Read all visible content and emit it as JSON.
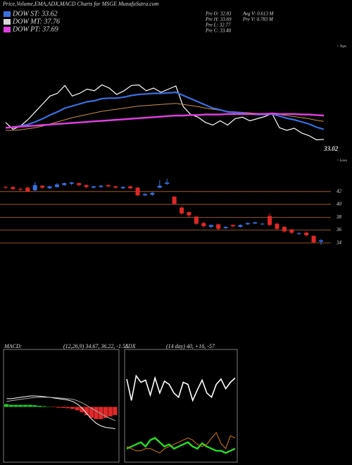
{
  "header": {
    "title": "Price,Volume,EMA,ADX,MACD Charts for MSGE MunafaSutra.com",
    "legend": [
      {
        "label": "DOW ST: 33.62",
        "color": "#3a6fe0"
      },
      {
        "label": "DOW MT: 37.76",
        "color": "#d8d8d8"
      },
      {
        "label": "DOW PT: 37.69",
        "color": "#e040e0"
      }
    ],
    "stats": [
      "Pre  O: 32.83",
      "Pre  H: 33.69",
      "Pre  L: 32.77",
      "Pre  C: 33.40",
      "Avg V: 0.613 M",
      "Pre  V: 0.783 M"
    ]
  },
  "chart_data": [
    {
      "type": "line",
      "ylim": [
        31,
        47
      ],
      "annotations": [
        "33.02",
        "< Tops",
        "< Lows"
      ],
      "series": [
        {
          "color": "#ffffff",
          "width": 1.2,
          "values": [
            36.5,
            35.2,
            35.8,
            37,
            38.5,
            40,
            41.5,
            42,
            43.5,
            41.5,
            42,
            42.8,
            42.5,
            43.6,
            43,
            41.8,
            42.5,
            43.5,
            43.6,
            42.5,
            43,
            42.2,
            42.8,
            43.4,
            39.5,
            38,
            37.5,
            36.5,
            36,
            36.8,
            36,
            37.2,
            37.5,
            36.8,
            37.2,
            37.6,
            38.2,
            35.5,
            35,
            35.4,
            34.5,
            34,
            33.2,
            33.3
          ]
        },
        {
          "color": "#c89050",
          "width": 1,
          "values": [
            35,
            35,
            35.1,
            35.3,
            35.5,
            35.8,
            36.2,
            36.6,
            37,
            37.4,
            37.7,
            38,
            38.3,
            38.6,
            38.8,
            39,
            39.2,
            39.4,
            39.6,
            39.7,
            39.8,
            39.9,
            40,
            40.1,
            39.9,
            39.7,
            39.5,
            39.2,
            39,
            38.8,
            38.6,
            38.5,
            38.4,
            38.3,
            38.2,
            38.2,
            38.2,
            38,
            37.8,
            37.6,
            37.4,
            37.2,
            36.9,
            36.7
          ]
        },
        {
          "color": "#3a6fe0",
          "width": 2.2,
          "values": [
            35.5,
            35.6,
            35.8,
            36.1,
            36.6,
            37.2,
            37.9,
            38.5,
            39.2,
            39.6,
            40,
            40.4,
            40.6,
            41,
            41.1,
            41.1,
            41.3,
            41.6,
            41.8,
            41.9,
            42,
            42,
            42.1,
            42.2,
            41.6,
            41,
            40.4,
            39.8,
            39.2,
            38.9,
            38.5,
            38.4,
            38.3,
            38.1,
            38,
            38,
            38.1,
            37.7,
            37.3,
            37,
            36.6,
            36.2,
            35.6,
            35.2
          ]
        },
        {
          "color": "#e040e0",
          "width": 2.4,
          "values": [
            35.5,
            35.6,
            35.7,
            35.8,
            35.9,
            36,
            36.1,
            36.2,
            36.3,
            36.4,
            36.5,
            36.6,
            36.7,
            36.8,
            36.9,
            37,
            37.1,
            37.2,
            37.3,
            37.4,
            37.5,
            37.6,
            37.7,
            37.8,
            37.8,
            37.9,
            37.9,
            38,
            38,
            38,
            38.1,
            38.1,
            38.1,
            38.1,
            38.1,
            38.1,
            38.2,
            38.1,
            38.1,
            38.1,
            38,
            38,
            37.9,
            37.8
          ]
        }
      ]
    },
    {
      "type": "candlestick",
      "ylim": [
        33,
        44.5
      ],
      "yticks": [
        34,
        36,
        38,
        40,
        42
      ],
      "up_color": "#3a6fe0",
      "down_color": "#e02828",
      "grid_color": "#b86a28",
      "open": [
        42.7,
        42.7,
        42.4,
        42.6,
        42.2,
        42.9,
        42.5,
        42.7,
        43.0,
        43.2,
        43.3,
        43.0,
        42.6,
        42.7,
        43.0,
        42.8,
        42.5,
        42.8,
        42.6,
        41.4,
        41.5,
        42.6,
        43.2,
        41.2,
        39.5,
        38.8,
        38.1,
        37.1,
        36.5,
        36.9,
        36.3,
        36.8,
        36.5,
        36.9,
        37.0,
        36.9,
        38.2,
        37.0,
        36.5,
        36.1,
        35.5,
        35.6,
        35.1,
        34.2
      ],
      "high": [
        42.9,
        42.8,
        42.6,
        42.8,
        43.5,
        43.0,
        42.9,
        43.3,
        43.4,
        43.5,
        43.4,
        43.1,
        42.9,
        43.0,
        43.1,
        42.9,
        42.8,
        42.9,
        42.7,
        41.8,
        41.9,
        43.8,
        44.0,
        41.3,
        39.7,
        38.9,
        38.2,
        37.3,
        36.9,
        37.0,
        36.6,
        36.9,
        36.9,
        37.2,
        37.3,
        37.1,
        38.6,
        37.1,
        36.6,
        36.2,
        35.7,
        35.8,
        35.2,
        34.6
      ],
      "low": [
        42.4,
        42.2,
        42.0,
        41.9,
        42.0,
        42.4,
        42.4,
        42.6,
        42.9,
        43.0,
        42.8,
        42.5,
        42.5,
        42.6,
        42.7,
        42.4,
        42.4,
        42.4,
        41.3,
        41.3,
        41.3,
        42.5,
        43.0,
        39.9,
        38.4,
        38.0,
        36.8,
        36.4,
        36.3,
        36.0,
        36.2,
        36.4,
        36.4,
        36.8,
        37.0,
        36.8,
        36.6,
        36.0,
        35.6,
        35.4,
        35.3,
        35.0,
        33.9,
        33.7
      ],
      "close": [
        42.6,
        42.4,
        42.3,
        42.0,
        43.0,
        42.6,
        42.8,
        43.1,
        43.3,
        43.4,
        43.0,
        42.7,
        42.8,
        42.9,
        42.8,
        42.6,
        42.7,
        42.5,
        41.4,
        41.6,
        41.8,
        42.9,
        43.4,
        40.1,
        38.6,
        38.3,
        37.0,
        36.6,
        36.8,
        36.2,
        36.5,
        36.6,
        36.8,
        37.1,
        37.2,
        37.0,
        36.8,
        36.2,
        35.8,
        35.6,
        35.5,
        35.2,
        34.1,
        34.4
      ]
    },
    {
      "type": "macd",
      "title": "MACD:",
      "subtitle": "(12,26,9) 34.67, 36.22, -1.55",
      "ylim": [
        -4,
        4
      ],
      "histogram": {
        "pos_color": "#22cc22",
        "neg_color": "#e02828",
        "values": [
          0.2,
          0.15,
          0.15,
          0.15,
          0.15,
          0.15,
          0.12,
          0.08,
          0.05,
          0.02,
          -0.03,
          -0.06,
          -0.08,
          -0.1,
          -0.15,
          -0.25,
          -0.4,
          -0.6,
          -0.8,
          -0.9,
          -0.9,
          -0.8,
          -0.7,
          -0.6
        ]
      },
      "series": [
        {
          "color": "#ffffff",
          "values": [
            0.6,
            0.6,
            0.65,
            0.7,
            0.75,
            0.8,
            0.8,
            0.78,
            0.75,
            0.7,
            0.65,
            0.6,
            0.55,
            0.5,
            0.4,
            0.2,
            -0.1,
            -0.5,
            -0.9,
            -1.2,
            -1.4,
            -1.5,
            -1.55,
            -1.6
          ]
        },
        {
          "color": "#aaaaaa",
          "values": [
            0.4,
            0.45,
            0.5,
            0.55,
            0.6,
            0.65,
            0.68,
            0.7,
            0.7,
            0.7,
            0.68,
            0.66,
            0.63,
            0.6,
            0.55,
            0.45,
            0.3,
            0.1,
            -0.1,
            -0.3,
            -0.5,
            -0.7,
            -0.85,
            -1.0
          ]
        }
      ]
    },
    {
      "type": "adx",
      "title": "ADX",
      "subtitle": "(14 day) 40, +16, -57",
      "ylim": [
        0,
        100
      ],
      "series": [
        {
          "color": "#ffffff",
          "width": 1.6,
          "values": [
            75,
            55,
            78,
            72,
            74,
            60,
            76,
            62,
            73,
            70,
            62,
            58,
            72,
            70,
            55,
            65,
            74,
            62,
            58,
            70,
            75,
            66,
            72,
            76
          ]
        },
        {
          "color": "#22dd22",
          "width": 2.4,
          "values": [
            10,
            12,
            14,
            16,
            12,
            18,
            20,
            16,
            12,
            14,
            10,
            12,
            14,
            16,
            12,
            10,
            15,
            12,
            10,
            8,
            8,
            6,
            8,
            10
          ]
        },
        {
          "color": "#d87a18",
          "width": 1,
          "values": [
            12,
            10,
            8,
            8,
            10,
            10,
            8,
            6,
            10,
            12,
            14,
            16,
            18,
            20,
            18,
            14,
            12,
            14,
            20,
            25,
            15,
            10,
            22,
            20
          ]
        }
      ]
    }
  ]
}
